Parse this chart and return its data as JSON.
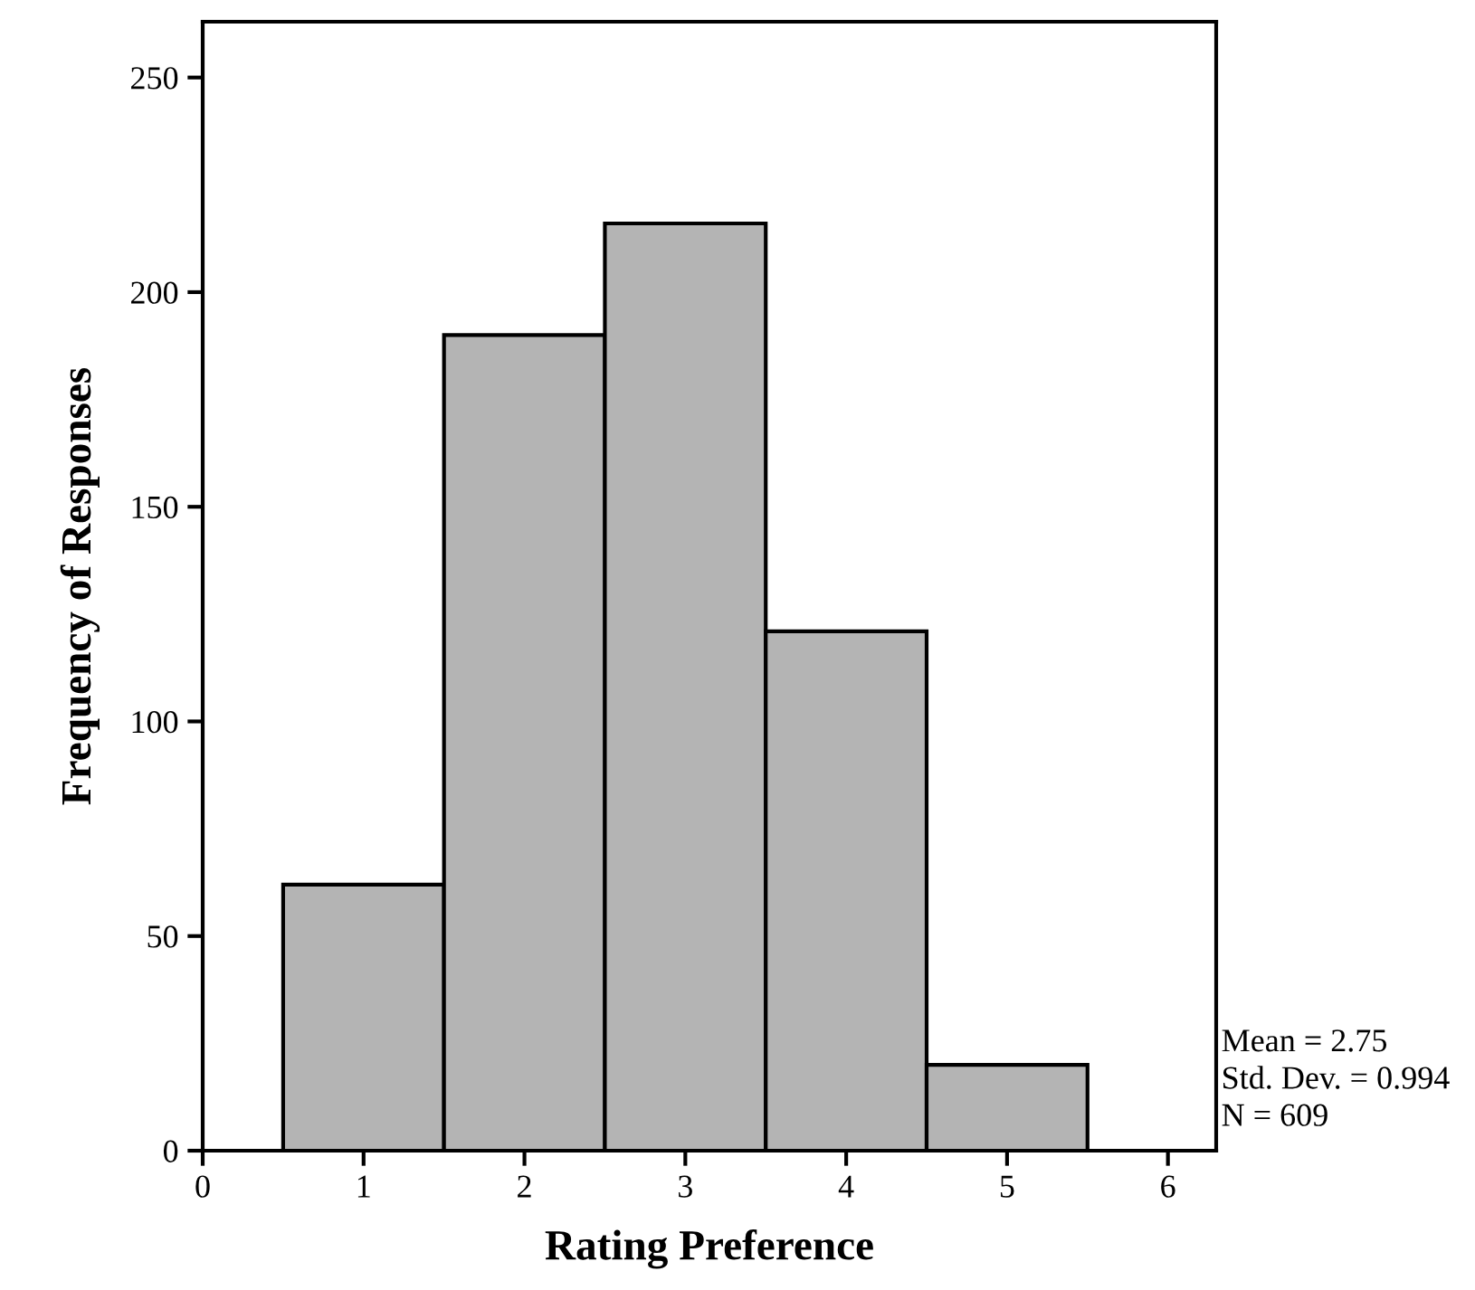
{
  "chart_data": {
    "type": "histogram",
    "xlabel": "Rating Preference",
    "ylabel": "Frequency of Responses",
    "bins": [
      0.5,
      1.5,
      2.5,
      3.5,
      4.5,
      5.5
    ],
    "values": [
      62,
      190,
      216,
      121,
      20
    ],
    "color": "#b4b4b4",
    "xlim": [
      0,
      6.3
    ],
    "xticks": [
      0,
      1,
      2,
      3,
      4,
      5,
      6
    ],
    "ylim": [
      0,
      263
    ],
    "yticks": [
      0,
      50,
      100,
      150,
      200,
      250
    ],
    "grid": false,
    "annotations": [
      "Mean = 2.75",
      "Std. Dev. = 0.994",
      "N = 609"
    ]
  }
}
